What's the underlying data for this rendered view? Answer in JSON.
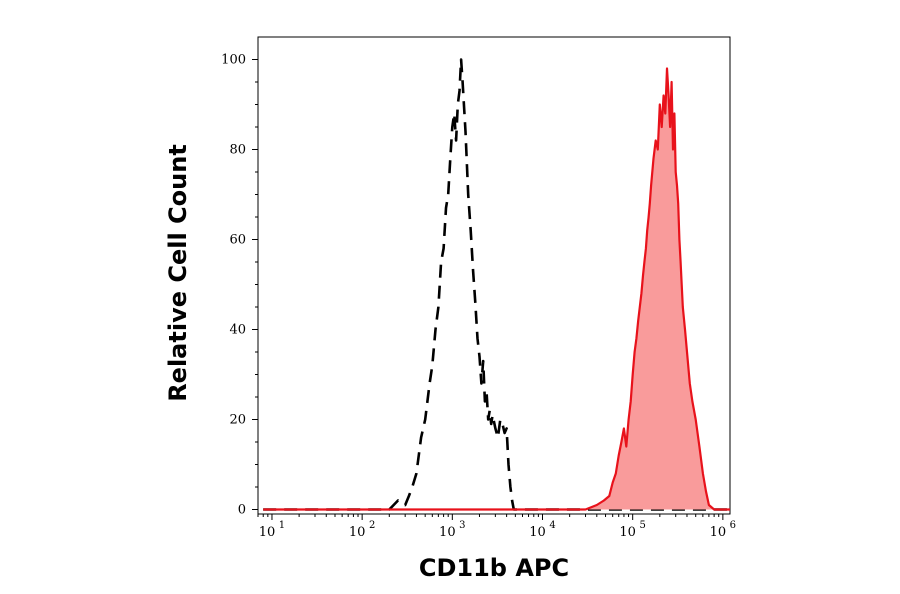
{
  "chart_data": {
    "type": "area",
    "title": "",
    "xlabel": "CD11b APC",
    "ylabel": "Relative Cell Count",
    "x_scale": "log",
    "xlim": [
      7,
      1200000
    ],
    "ylim": [
      -1,
      105
    ],
    "x_ticks": [
      {
        "base": "10",
        "exp": "1",
        "value": 10
      },
      {
        "base": "10",
        "exp": "2",
        "value": 100
      },
      {
        "base": "10",
        "exp": "3",
        "value": 1000
      },
      {
        "base": "10",
        "exp": "4",
        "value": 10000
      },
      {
        "base": "10",
        "exp": "5",
        "value": 100000
      },
      {
        "base": "10",
        "exp": "6",
        "value": 1000000
      }
    ],
    "y_ticks": [
      "0",
      "20",
      "40",
      "60",
      "80",
      "100"
    ],
    "grid": false,
    "series": [
      {
        "style": "dashed",
        "color": "#000000",
        "filled": false,
        "x": [
          8,
          100,
          200,
          250,
          300,
          330,
          360,
          400,
          450,
          500,
          560,
          600,
          650,
          700,
          750,
          800,
          850,
          900,
          950,
          1000,
          1050,
          1100,
          1150,
          1200,
          1250,
          1300,
          1400,
          1500,
          1600,
          1700,
          1800,
          1900,
          2000,
          2100,
          2200,
          2300,
          2400,
          2500,
          2600,
          2700,
          2800,
          3000,
          3200,
          3400,
          3600,
          3800,
          4000,
          4200,
          4400,
          4600,
          4800,
          1200000
        ],
        "values": [
          0,
          0,
          0,
          2,
          1,
          3,
          5,
          8,
          16,
          20,
          28,
          32,
          40,
          45,
          55,
          58,
          67,
          70,
          78,
          85,
          88,
          82,
          90,
          93,
          100,
          95,
          84,
          70,
          62,
          53,
          46,
          38,
          34,
          28,
          33,
          24,
          26,
          20,
          22,
          19,
          21,
          18,
          16,
          20,
          19,
          17,
          18,
          10,
          5,
          2,
          0,
          0
        ]
      },
      {
        "style": "solid",
        "color": "#e8121b",
        "fill": "#f99b9b",
        "filled": true,
        "x": [
          8,
          30000,
          40000,
          48000,
          55000,
          60000,
          65000,
          70000,
          75000,
          80000,
          85000,
          90000,
          95000,
          100000,
          105000,
          110000,
          115000,
          120000,
          125000,
          130000,
          135000,
          140000,
          145000,
          150000,
          155000,
          160000,
          170000,
          180000,
          190000,
          200000,
          210000,
          220000,
          230000,
          240000,
          250000,
          260000,
          270000,
          280000,
          290000,
          300000,
          310000,
          320000,
          330000,
          340000,
          350000,
          360000,
          380000,
          400000,
          430000,
          460000,
          500000,
          550000,
          600000,
          650000,
          700000,
          800000,
          1200000
        ],
        "values": [
          0,
          0,
          1,
          2,
          3,
          6,
          8,
          12,
          15,
          18,
          14,
          20,
          24,
          30,
          35,
          38,
          42,
          45,
          48,
          52,
          55,
          58,
          62,
          65,
          68,
          72,
          78,
          82,
          80,
          90,
          85,
          92,
          88,
          98,
          92,
          85,
          95,
          80,
          88,
          75,
          72,
          68,
          60,
          55,
          50,
          45,
          40,
          35,
          28,
          24,
          20,
          14,
          8,
          4,
          1,
          0,
          0
        ]
      }
    ]
  }
}
